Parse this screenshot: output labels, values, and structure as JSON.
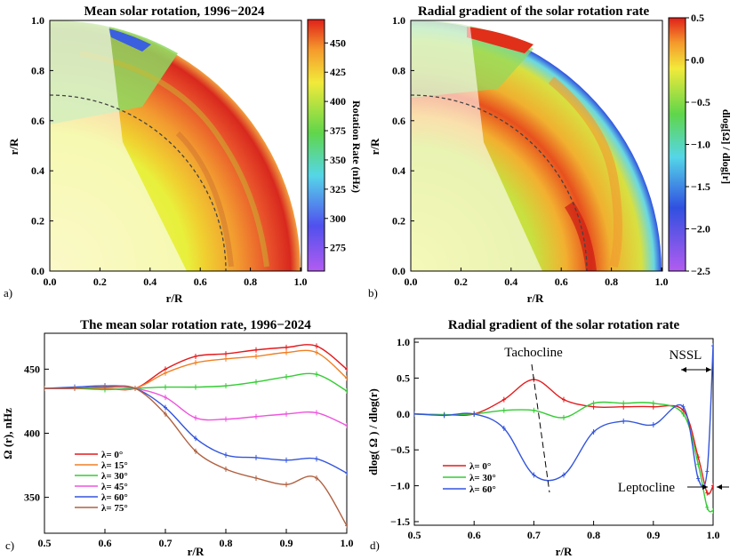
{
  "chart_data": [
    {
      "id": "a",
      "type": "heatmap",
      "panel_label": "a)",
      "title": "Mean solar rotation, 1996−2024",
      "xlabel": "r/R",
      "ylabel": "r/R",
      "xlim": [
        0,
        1
      ],
      "ylim": [
        0,
        1
      ],
      "xticks": [
        "0.0",
        "0.2",
        "0.4",
        "0.6",
        "0.8",
        "1.0"
      ],
      "yticks": [
        "0.0",
        "0.2",
        "0.4",
        "0.6",
        "0.8",
        "1.0"
      ],
      "colorbar": {
        "label": "Rotation Rate (nHz)",
        "min": 255,
        "max": 470,
        "ticks": [
          "275",
          "300",
          "325",
          "350",
          "375",
          "400",
          "425",
          "450"
        ]
      },
      "tachocline_radius": 0.7
    },
    {
      "id": "b",
      "type": "heatmap",
      "panel_label": "b)",
      "title": "Radial gradient of the solar rotation rate",
      "xlabel": "r/R",
      "ylabel": "r/R",
      "xlim": [
        0,
        1
      ],
      "ylim": [
        0,
        1
      ],
      "xticks": [
        "0.0",
        "0.2",
        "0.4",
        "0.6",
        "0.8",
        "1.0"
      ],
      "yticks": [
        "0.0",
        "0.2",
        "0.4",
        "0.6",
        "0.8",
        "1.0"
      ],
      "colorbar": {
        "label": "dlog[Ω] / dlog[r]",
        "min": -2.5,
        "max": 0.5,
        "ticks": [
          "0.5",
          "0.0",
          "−0.5",
          "−1.0",
          "−1.5",
          "−2.0",
          "−2.5"
        ]
      },
      "tachocline_radius": 0.7
    },
    {
      "id": "c",
      "type": "line",
      "panel_label": "c)",
      "title": "The mean solar rotation rate, 1996−2024",
      "xlabel": "r/R",
      "ylabel": "Ω (r), nHz",
      "xlim": [
        0.5,
        1.0
      ],
      "ylim": [
        322,
        478
      ],
      "xticks": [
        "0.5",
        "0.6",
        "0.7",
        "0.8",
        "0.9",
        "1.0"
      ],
      "yticks": [
        "350",
        "400",
        "450"
      ],
      "x": [
        0.5,
        0.55,
        0.6,
        0.65,
        0.7,
        0.75,
        0.8,
        0.85,
        0.9,
        0.95,
        1.0
      ],
      "series": [
        {
          "name": "λ= 0°",
          "color": "#e41a1c",
          "values": [
            435,
            435,
            435,
            435,
            450,
            460,
            462,
            465,
            467,
            468,
            450
          ]
        },
        {
          "name": "λ= 15°",
          "color": "#f07f23",
          "values": [
            435,
            435,
            435,
            435,
            447,
            455,
            458,
            460,
            463,
            463,
            443
          ]
        },
        {
          "name": "λ= 30°",
          "color": "#33cc33",
          "values": [
            435,
            435,
            434,
            435,
            436,
            436,
            437,
            440,
            444,
            446,
            433
          ]
        },
        {
          "name": "λ= 45°",
          "color": "#ee55dd",
          "values": [
            435,
            435,
            436,
            435,
            428,
            412,
            411,
            413,
            415,
            416,
            406
          ]
        },
        {
          "name": "λ= 60°",
          "color": "#3355dd",
          "values": [
            435,
            436,
            437,
            435,
            420,
            396,
            383,
            381,
            379,
            380,
            369
          ]
        },
        {
          "name": "λ= 75°",
          "color": "#b06040",
          "values": [
            435,
            435,
            436,
            435,
            415,
            386,
            372,
            365,
            360,
            365,
            328
          ]
        }
      ]
    },
    {
      "id": "d",
      "type": "line",
      "panel_label": "d)",
      "title": "Radial gradient of the solar rotation rate",
      "xlabel": "r/R",
      "ylabel": "dlog( Ω ) / dlog(r)",
      "xlim": [
        0.5,
        1.0
      ],
      "ylim": [
        -1.55,
        1.05
      ],
      "xticks": [
        "0.5",
        "0.6",
        "0.7",
        "0.8",
        "0.9",
        "1.0"
      ],
      "yticks": [
        "1.0",
        "0.5",
        "0.0",
        "−0.5",
        "−1.0",
        "−1.5"
      ],
      "x": [
        0.5,
        0.55,
        0.6,
        0.65,
        0.7,
        0.75,
        0.8,
        0.85,
        0.9,
        0.95,
        0.975,
        0.99,
        1.0
      ],
      "series": [
        {
          "name": "λ= 0°",
          "color": "#e41a1c",
          "values": [
            0.0,
            -0.01,
            0.0,
            0.2,
            0.48,
            0.2,
            0.1,
            0.1,
            0.1,
            0.05,
            -0.6,
            -1.1,
            -1.0
          ]
        },
        {
          "name": "λ= 30°",
          "color": "#33cc33",
          "values": [
            0.0,
            -0.01,
            0.0,
            0.05,
            0.05,
            -0.05,
            0.15,
            0.15,
            0.15,
            0.0,
            -0.7,
            -1.3,
            -1.35
          ]
        },
        {
          "name": "λ= 60°",
          "color": "#3355dd",
          "values": [
            0.0,
            -0.02,
            0.0,
            -0.2,
            -0.85,
            -0.85,
            -0.25,
            -0.1,
            -0.15,
            0.1,
            -0.9,
            -0.8,
            0.95
          ]
        }
      ],
      "annotations": {
        "tachocline": "Tachocline",
        "nssl": "NSSL",
        "leptocline": "Leptocline"
      }
    }
  ]
}
